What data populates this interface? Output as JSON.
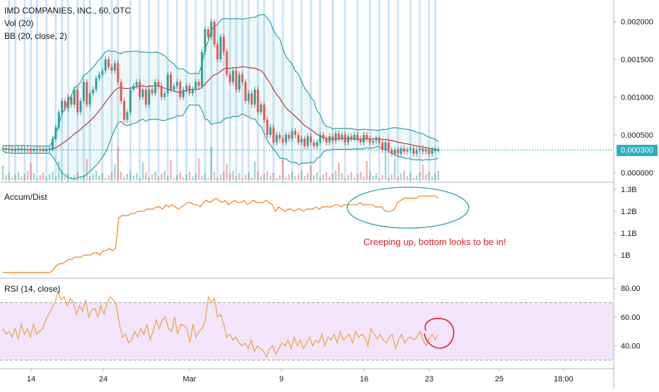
{
  "legend": {
    "title": "IMD COMPANIES, INC., 60, OTC",
    "vol": "Vol (20)",
    "bb": "BB (20, close, 2)",
    "ad": "Accum/Dist",
    "rsi": "RSI (14, close)"
  },
  "price_tag": "0.000300",
  "annotation": "Creeping up, bottom looks to be in!",
  "colors": {
    "up": "#26a69a",
    "down": "#ef5350",
    "bb": "#2aa0a8",
    "basis": "#b03a3a",
    "ad": "#f08a30",
    "rsi": "#f0a040",
    "rsi_band": "#f3e4fb",
    "highlight": "#bfdcf7",
    "annot": "#e0202a"
  },
  "chart_data": [
    {
      "type": "candlestick",
      "title": "IMD COMPANIES, INC., 60, OTC",
      "ylim": [
        -0.0001,
        0.0021
      ],
      "y_ticks": [
        "0.002000",
        "0.001500",
        "0.001000",
        "0.000500",
        "0.000000"
      ],
      "y_tick_values": [
        0.002,
        0.0015,
        0.001,
        0.0005,
        0.0
      ],
      "x_ticks": [
        "14",
        "24",
        "Mar",
        "9",
        "16",
        "23",
        "25",
        "18:00"
      ],
      "current_price": 0.0003,
      "close_series": [
        0.00032,
        0.0003,
        0.00031,
        0.00029,
        0.0003,
        0.00032,
        0.0003,
        0.00031,
        0.0003,
        0.00029,
        0.0003,
        0.00031,
        0.0003,
        0.00029,
        0.0003,
        0.00032,
        0.00045,
        0.0006,
        0.0008,
        0.00095,
        0.00085,
        0.001,
        0.0009,
        0.0011,
        0.0008,
        0.00095,
        0.0012,
        0.0009,
        0.00105,
        0.0011,
        0.00125,
        0.0013,
        0.00135,
        0.0015,
        0.0014,
        0.00135,
        0.00145,
        0.0012,
        0.00095,
        0.0007,
        0.0008,
        0.0011,
        0.00115,
        0.0012,
        0.001,
        0.0011,
        0.0009,
        0.0011,
        0.00105,
        0.0012,
        0.00115,
        0.001,
        0.00105,
        0.0013,
        0.0011,
        0.00115,
        0.0012,
        0.001,
        0.0011,
        0.00115,
        0.00105,
        0.0011,
        0.0012,
        0.00115,
        0.0016,
        0.0019,
        0.0018,
        0.002,
        0.0017,
        0.0015,
        0.0018,
        0.0016,
        0.0013,
        0.0012,
        0.00135,
        0.0011,
        0.0013,
        0.0012,
        0.00095,
        0.00105,
        0.0009,
        0.0011,
        0.0008,
        0.0009,
        0.0007,
        0.0005,
        0.0006,
        0.0004,
        0.0005,
        0.00045,
        0.0004,
        0.0005,
        0.00045,
        0.00055,
        0.0005,
        0.0004,
        0.00045,
        0.00035,
        0.00048,
        0.0004,
        0.00035,
        0.0004,
        0.0005,
        0.00045,
        0.0004,
        0.00048,
        0.00042,
        0.00052,
        0.00045,
        0.0005,
        0.0004,
        0.00048,
        0.00045,
        0.0005,
        0.00045,
        0.0004,
        0.0005,
        0.00045,
        0.0004,
        0.00042,
        0.00045,
        0.0004,
        0.0003,
        0.0004,
        0.0003,
        0.00025,
        0.0003,
        0.00025,
        0.00032,
        0.00028,
        0.0003,
        0.00032,
        0.00025,
        0.0003,
        0.00032,
        0.00028,
        0.0003,
        0.00025,
        0.0003,
        0.0003,
        0.0003
      ]
    },
    {
      "type": "line",
      "title": "Accum/Dist",
      "ylim": [
        0.9,
        1.32
      ],
      "y_ticks": [
        "1.3B",
        "1.2B",
        "1.1B",
        "1B"
      ],
      "y_tick_values": [
        1.3,
        1.2,
        1.1,
        1.0
      ],
      "values": [
        0.92,
        0.92,
        0.92,
        0.92,
        0.92,
        0.92,
        0.92,
        0.92,
        0.92,
        0.92,
        0.92,
        0.92,
        0.92,
        0.92,
        0.92,
        0.92,
        0.93,
        0.95,
        0.96,
        0.96,
        0.97,
        0.98,
        0.98,
        0.99,
        0.99,
        0.99,
        1.0,
        1.0,
        1.0,
        1.01,
        1.01,
        1.0,
        1.02,
        1.02,
        1.03,
        1.02,
        1.03,
        1.17,
        1.18,
        1.18,
        1.18,
        1.19,
        1.19,
        1.2,
        1.2,
        1.2,
        1.21,
        1.21,
        1.21,
        1.22,
        1.22,
        1.21,
        1.23,
        1.22,
        1.23,
        1.22,
        1.21,
        1.22,
        1.23,
        1.24,
        1.24,
        1.23,
        1.23,
        1.22,
        1.24,
        1.25,
        1.24,
        1.25,
        1.26,
        1.25,
        1.24,
        1.25,
        1.23,
        1.24,
        1.25,
        1.24,
        1.24,
        1.25,
        1.23,
        1.24,
        1.25,
        1.24,
        1.24,
        1.24,
        1.25,
        1.24,
        1.23,
        1.2,
        1.22,
        1.21,
        1.2,
        1.21,
        1.21,
        1.2,
        1.21,
        1.21,
        1.2,
        1.21,
        1.21,
        1.21,
        1.22,
        1.21,
        1.22,
        1.22,
        1.22,
        1.22,
        1.23,
        1.23,
        1.22,
        1.23,
        1.23,
        1.23,
        1.23,
        1.23,
        1.24,
        1.23,
        1.23,
        1.23,
        1.23,
        1.22,
        1.22,
        1.22,
        1.2,
        1.2,
        1.2,
        1.21,
        1.24,
        1.25,
        1.26,
        1.26,
        1.26,
        1.26,
        1.26,
        1.27,
        1.27,
        1.27,
        1.27,
        1.27,
        1.27,
        1.26
      ]
    },
    {
      "type": "line",
      "title": "RSI (14, close)",
      "ylim": [
        25,
        85
      ],
      "y_ticks": [
        "80.00",
        "60.00",
        "40.00"
      ],
      "y_tick_values": [
        80,
        60,
        40
      ],
      "band": [
        30,
        70
      ],
      "values": [
        52,
        48,
        50,
        46,
        52,
        45,
        55,
        48,
        52,
        46,
        55,
        48,
        50,
        52,
        58,
        62,
        66,
        70,
        78,
        72,
        74,
        68,
        73,
        70,
        62,
        68,
        64,
        72,
        60,
        65,
        66,
        60,
        68,
        62,
        70,
        74,
        72,
        68,
        55,
        46,
        48,
        42,
        44,
        50,
        46,
        52,
        48,
        55,
        44,
        50,
        58,
        52,
        58,
        60,
        52,
        50,
        60,
        48,
        55,
        54,
        52,
        42,
        55,
        46,
        50,
        52,
        58,
        74,
        70,
        73,
        60,
        62,
        55,
        46,
        48,
        44,
        46,
        42,
        40,
        42,
        38,
        44,
        36,
        40,
        38,
        36,
        32,
        38,
        40,
        34,
        38,
        42,
        40,
        44,
        38,
        46,
        40,
        44,
        38,
        42,
        46,
        40,
        44,
        42,
        48,
        40,
        46,
        44,
        48,
        42,
        50,
        44,
        46,
        48,
        42,
        50,
        46,
        48,
        46,
        40,
        52,
        48,
        45,
        48,
        44,
        42,
        46,
        48,
        38,
        44,
        48,
        42,
        45,
        46,
        44,
        46,
        50,
        44,
        40,
        45,
        48,
        44,
        48
      ]
    }
  ]
}
